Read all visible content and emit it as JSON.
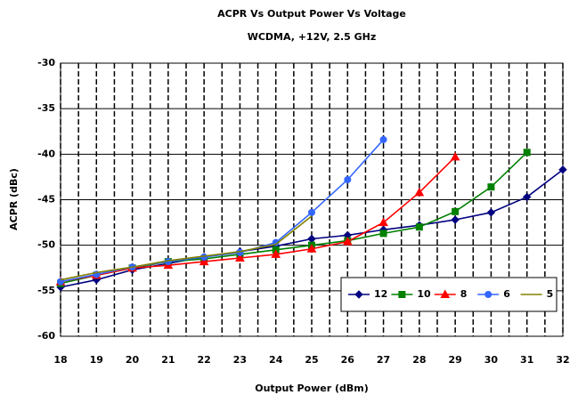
{
  "chart_data": {
    "type": "line",
    "title": "ACPR Vs Output Power Vs Voltage",
    "subtitle": "WCDMA, +12V, 2.5 GHz",
    "x_label": "Output Power (dBm)",
    "y_label": "ACPR (dBc)",
    "x": [
      18,
      19,
      20,
      21,
      22,
      23,
      24,
      25,
      26,
      27,
      28,
      29,
      30,
      31,
      32
    ],
    "series": [
      {
        "name": "12",
        "color": "#000080",
        "marker": "diamond",
        "values": [
          -54.6,
          -53.8,
          -52.7,
          -52.0,
          -51.3,
          -50.7,
          -50.1,
          -49.3,
          -48.9,
          -48.3,
          -47.8,
          -47.2,
          -46.4,
          -44.7,
          -41.7
        ]
      },
      {
        "name": "10",
        "color": "#008000",
        "marker": "square",
        "values": [
          -54.2,
          -53.3,
          -52.5,
          -51.8,
          -51.5,
          -51.0,
          -50.5,
          -50.0,
          -49.5,
          -48.7,
          -48.0,
          -46.3,
          -43.6,
          -39.8,
          null
        ]
      },
      {
        "name": "8",
        "color": "#ff0000",
        "marker": "triangle",
        "values": [
          -54.0,
          -53.3,
          -52.5,
          -52.2,
          -51.8,
          -51.4,
          -51.0,
          -50.4,
          -49.6,
          -47.5,
          -44.2,
          -40.3,
          null,
          null,
          null
        ]
      },
      {
        "name": "6",
        "color": "#3366ff",
        "marker": "circle",
        "values": [
          -54.0,
          -53.2,
          -52.4,
          -51.8,
          -51.3,
          -50.8,
          -49.7,
          -46.4,
          -42.8,
          -38.4,
          null,
          null,
          null,
          null,
          null
        ]
      },
      {
        "name": "5",
        "color": "#808000",
        "marker": "none",
        "values": [
          -53.8,
          -53.0,
          -52.4,
          -51.7,
          -51.2,
          -50.7,
          -49.9,
          -46.8,
          null,
          null,
          null,
          null,
          null,
          null,
          null
        ]
      }
    ],
    "xlim": [
      18,
      32
    ],
    "ylim": [
      -60,
      -30
    ],
    "xticks": [
      18,
      19,
      20,
      21,
      22,
      23,
      24,
      25,
      26,
      27,
      28,
      29,
      30,
      31,
      32
    ],
    "yticks": [
      -30,
      -35,
      -40,
      -45,
      -50,
      -55,
      -60
    ],
    "grid": true,
    "legend": "lower-right"
  }
}
